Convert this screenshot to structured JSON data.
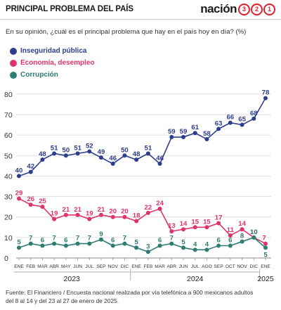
{
  "header": {
    "title": "PRINCIPAL PROBLEMA DEL PAÍS",
    "brand_word": "nación",
    "brand_digits": [
      "3",
      "2",
      "1"
    ],
    "brand_color": "#e0202a"
  },
  "question": "En su opinión, ¿cuál es el principal problema que hay en el país hoy en día? (%)",
  "source_line1": "Fuente: El Financiero / Encuesta nacional realizada por vía telefónica a 900 mexicanos adultos",
  "source_line2": "del 8 al 14 y del 23 al 27 de enero de 2025.",
  "chart_data": {
    "type": "line",
    "x": [
      "ENE",
      "FEB",
      "MAR",
      "ABR",
      "MAY",
      "JUN",
      "JUL",
      "SEP",
      "NOV",
      "DIC",
      "ENE",
      "FEB",
      "MAR",
      "ABR",
      "JUN",
      "JUL",
      "AGO",
      "SEP",
      "OCT",
      "NOV",
      "DIC",
      "ENE"
    ],
    "year_labels": [
      {
        "label": "2023",
        "start": 0,
        "end": 9
      },
      {
        "label": "2024",
        "start": 10,
        "end": 20
      },
      {
        "label": "2025",
        "start": 21,
        "end": 21
      }
    ],
    "yticks": [
      0,
      10,
      20,
      30,
      40,
      50,
      60,
      70,
      80
    ],
    "ylim": [
      0,
      82
    ],
    "grid": true,
    "legend": "top-left",
    "series": [
      {
        "name": "Inseguridad pública",
        "color": "#2e3c8c",
        "values": [
          40,
          42,
          48,
          51,
          50,
          51,
          52,
          49,
          46,
          50,
          48,
          51,
          46,
          59,
          59,
          61,
          58,
          63,
          66,
          65,
          68,
          78
        ]
      },
      {
        "name": "Economía, desempleo",
        "color": "#e0326e",
        "values": [
          29,
          26,
          25,
          19,
          21,
          21,
          19,
          21,
          20,
          20,
          18,
          22,
          24,
          13,
          14,
          15,
          15,
          17,
          11,
          14,
          10,
          7
        ]
      },
      {
        "name": "Corrupción",
        "color": "#2f7c72",
        "values": [
          5,
          7,
          6,
          7,
          6,
          7,
          7,
          9,
          6,
          7,
          5,
          3,
          6,
          7,
          5,
          4,
          4,
          6,
          6,
          8,
          10,
          5
        ]
      }
    ]
  }
}
